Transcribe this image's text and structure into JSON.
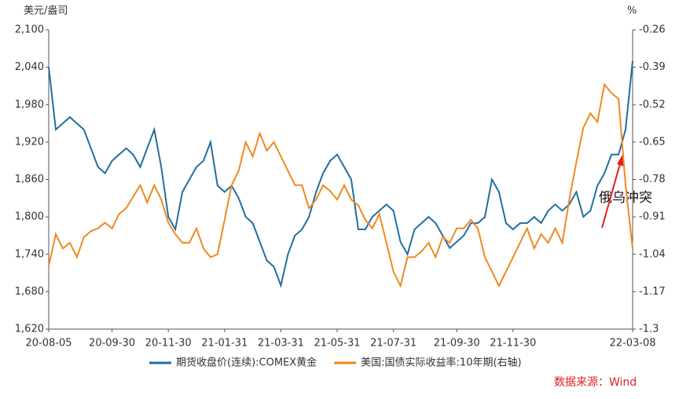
{
  "chart_data": {
    "type": "line",
    "y_unit": "美元/盎司",
    "y2_unit": "%",
    "annotation": "俄乌冲突",
    "source": "数据来源：Wind",
    "categories": [
      "20-08-05",
      null,
      null,
      null,
      null,
      null,
      null,
      null,
      null,
      "20-09-30",
      null,
      null,
      null,
      null,
      null,
      null,
      null,
      "20-11-30",
      null,
      null,
      null,
      null,
      null,
      null,
      null,
      "21-01-31",
      null,
      null,
      null,
      null,
      null,
      null,
      null,
      "21-03-31",
      null,
      null,
      null,
      null,
      null,
      null,
      null,
      "21-05-31",
      null,
      null,
      null,
      null,
      null,
      null,
      null,
      "21-07-31",
      null,
      null,
      null,
      null,
      null,
      null,
      null,
      null,
      "21-09-30",
      null,
      null,
      null,
      null,
      null,
      null,
      null,
      "21-11-30",
      null,
      null,
      null,
      null,
      null,
      null,
      null,
      null,
      null,
      null,
      null,
      null,
      null,
      null,
      null,
      null,
      "22-03-08"
    ],
    "series": [
      {
        "name": "期货收盘价(连续):COMEX黄金",
        "color": "#1f6f9f",
        "axis": "y",
        "values": [
          2040,
          1940,
          1950,
          1960,
          1950,
          1940,
          1910,
          1880,
          1870,
          1890,
          1900,
          1910,
          1900,
          1880,
          1910,
          1940,
          1880,
          1800,
          1780,
          1840,
          1860,
          1880,
          1890,
          1920,
          1850,
          1840,
          1850,
          1830,
          1800,
          1790,
          1760,
          1730,
          1720,
          1690,
          1740,
          1770,
          1780,
          1800,
          1840,
          1870,
          1890,
          1900,
          1880,
          1860,
          1780,
          1780,
          1800,
          1810,
          1820,
          1810,
          1760,
          1740,
          1780,
          1790,
          1800,
          1790,
          1770,
          1750,
          1760,
          1770,
          1790,
          1790,
          1800,
          1860,
          1840,
          1790,
          1780,
          1790,
          1790,
          1800,
          1790,
          1810,
          1820,
          1810,
          1820,
          1840,
          1800,
          1810,
          1850,
          1870,
          1900,
          1900,
          1940,
          2050
        ]
      },
      {
        "name": "美国:国债实际收益率:10年期(右轴)",
        "color": "#f0891e",
        "axis": "y2",
        "values": [
          -1.08,
          -0.97,
          -1.02,
          -1.0,
          -1.05,
          -0.98,
          -0.96,
          -0.95,
          -0.93,
          -0.95,
          -0.9,
          -0.88,
          -0.84,
          -0.8,
          -0.86,
          -0.8,
          -0.85,
          -0.93,
          -0.97,
          -1.0,
          -1.0,
          -0.95,
          -1.02,
          -1.05,
          -1.04,
          -0.92,
          -0.8,
          -0.75,
          -0.65,
          -0.7,
          -0.62,
          -0.68,
          -0.65,
          -0.7,
          -0.75,
          -0.8,
          -0.8,
          -0.88,
          -0.85,
          -0.8,
          -0.82,
          -0.85,
          -0.8,
          -0.85,
          -0.87,
          -0.92,
          -0.95,
          -0.9,
          -1.0,
          -1.1,
          -1.15,
          -1.05,
          -1.05,
          -1.03,
          -1.0,
          -1.05,
          -0.98,
          -1.0,
          -0.95,
          -0.95,
          -0.92,
          -0.95,
          -1.05,
          -1.1,
          -1.15,
          -1.1,
          -1.05,
          -1.0,
          -0.95,
          -1.02,
          -0.97,
          -1.0,
          -0.95,
          -1.0,
          -0.85,
          -0.72,
          -0.6,
          -0.55,
          -0.58,
          -0.45,
          -0.48,
          -0.5,
          -0.8,
          -1.02
        ]
      }
    ],
    "ylim": [
      1620,
      2100
    ],
    "yticks": [
      {
        "value": 1620,
        "label": "1,620"
      },
      {
        "value": 1680,
        "label": "1,680"
      },
      {
        "value": 1740,
        "label": "1,740"
      },
      {
        "value": 1800,
        "label": "1,800"
      },
      {
        "value": 1860,
        "label": "1,860"
      },
      {
        "value": 1920,
        "label": "1,920"
      },
      {
        "value": 1980,
        "label": "1,980"
      },
      {
        "value": 2040,
        "label": "2,040"
      },
      {
        "value": 2100,
        "label": "2,100"
      }
    ],
    "y2lim": [
      -1.3,
      -0.26
    ],
    "y2ticks": [
      -1.3,
      -1.17,
      -1.04,
      -0.91,
      -0.78,
      -0.65,
      -0.52,
      -0.39,
      -0.26
    ],
    "grid": false
  }
}
